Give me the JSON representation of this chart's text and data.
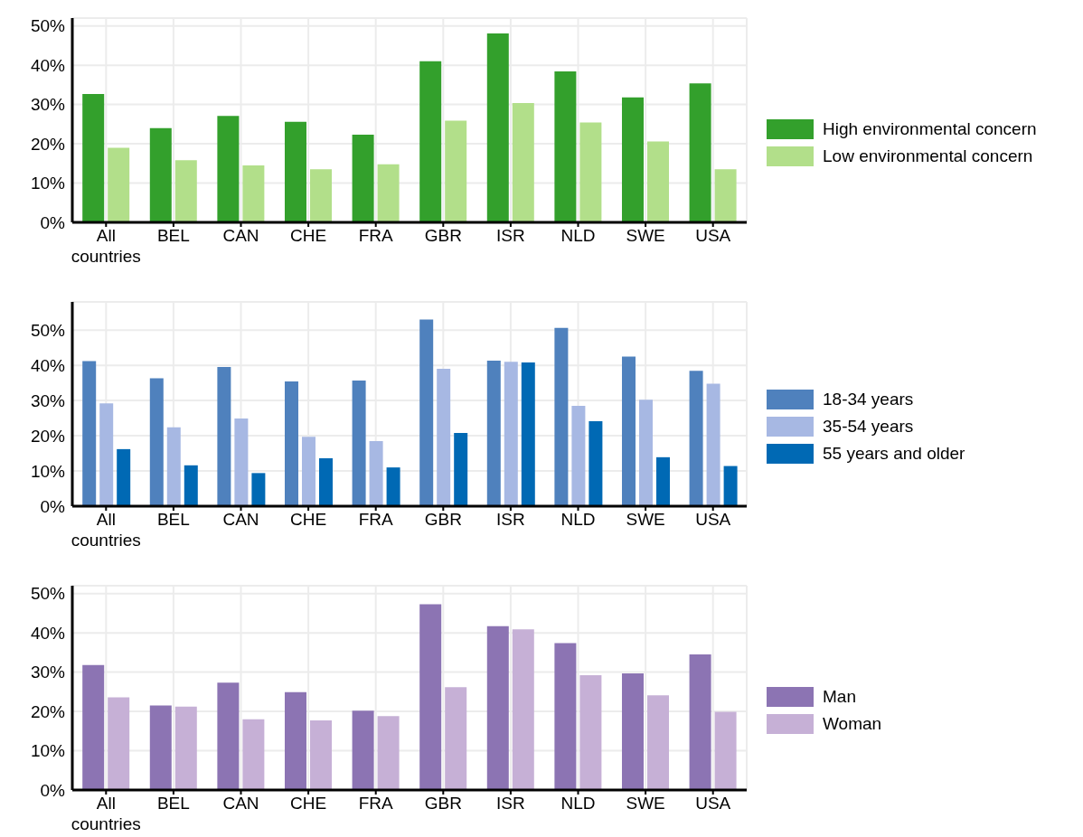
{
  "chart_data": [
    {
      "type": "bar",
      "categories": [
        "All countries",
        "BEL",
        "CAN",
        "CHE",
        "FRA",
        "GBR",
        "ISR",
        "NLD",
        "SWE",
        "USA"
      ],
      "series": [
        {
          "name": "High environmental concern",
          "color": "#33a02c",
          "values": [
            32.7,
            24,
            27.1,
            25.6,
            22.3,
            41,
            48.1,
            38.4,
            31.8,
            35.4
          ]
        },
        {
          "name": "Low environmental concern",
          "color": "#b2df8a",
          "values": [
            19,
            15.8,
            14.5,
            13.5,
            14.8,
            25.9,
            30.4,
            25.4,
            20.6,
            13.5
          ]
        }
      ],
      "ylim": [
        0,
        52
      ],
      "yticks": [
        {
          "value": 0,
          "label": "0%"
        },
        {
          "value": 10,
          "label": "10%"
        },
        {
          "value": 20,
          "label": "20%"
        },
        {
          "value": 30,
          "label": "30%"
        },
        {
          "value": 40,
          "label": "40%"
        },
        {
          "value": 50,
          "label": "50%"
        }
      ],
      "grid": true,
      "legend": "right"
    },
    {
      "type": "bar",
      "categories": [
        "All countries",
        "BEL",
        "CAN",
        "CHE",
        "FRA",
        "GBR",
        "ISR",
        "NLD",
        "SWE",
        "USA"
      ],
      "series": [
        {
          "name": "18-34 years",
          "color": "#4f81bd",
          "values": [
            41.2,
            36.3,
            39.5,
            35.4,
            35.7,
            53,
            41.3,
            50.6,
            42.5,
            38.4
          ]
        },
        {
          "name": "35-54 years",
          "color": "#a7b8e3",
          "values": [
            29.2,
            22.4,
            24.9,
            19.7,
            18.5,
            39,
            41,
            28.5,
            30.2,
            34.8
          ]
        },
        {
          "name": "55 years and older",
          "color": "#0069b4",
          "values": [
            16.2,
            11.6,
            9.4,
            13.6,
            11,
            20.8,
            40.8,
            24.1,
            13.9,
            11.4
          ]
        }
      ],
      "ylim": [
        0,
        58
      ],
      "yticks": [
        {
          "value": 0,
          "label": "0%"
        },
        {
          "value": 10,
          "label": "10%"
        },
        {
          "value": 20,
          "label": "20%"
        },
        {
          "value": 30,
          "label": "30%"
        },
        {
          "value": 40,
          "label": "40%"
        },
        {
          "value": 50,
          "label": "50%"
        }
      ],
      "grid": true,
      "legend": "right"
    },
    {
      "type": "bar",
      "categories": [
        "All countries",
        "BEL",
        "CAN",
        "CHE",
        "FRA",
        "GBR",
        "ISR",
        "NLD",
        "SWE",
        "USA"
      ],
      "series": [
        {
          "name": "Man",
          "color": "#8c74b3",
          "values": [
            31.8,
            21.5,
            27.3,
            24.9,
            20.2,
            47.3,
            41.7,
            37.4,
            29.7,
            34.5
          ]
        },
        {
          "name": "Woman",
          "color": "#c6b0d6",
          "values": [
            23.6,
            21.2,
            18,
            17.7,
            18.8,
            26.2,
            40.9,
            29.2,
            24.1,
            19.9
          ]
        }
      ],
      "ylim": [
        0,
        52
      ],
      "yticks": [
        {
          "value": 0,
          "label": "0%"
        },
        {
          "value": 10,
          "label": "10%"
        },
        {
          "value": 20,
          "label": "20%"
        },
        {
          "value": 30,
          "label": "30%"
        },
        {
          "value": 40,
          "label": "40%"
        },
        {
          "value": 50,
          "label": "50%"
        }
      ],
      "grid": true,
      "legend": "right"
    }
  ]
}
